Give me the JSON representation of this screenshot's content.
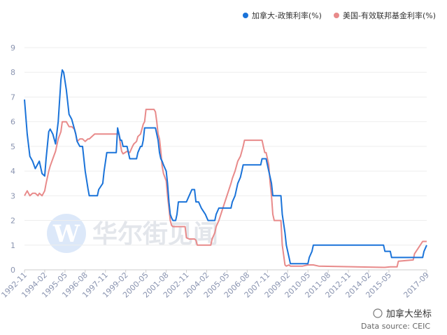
{
  "chart_data": {
    "type": "line",
    "x": [
      "1992-11",
      "1993-01",
      "1993-03",
      "1993-05",
      "1993-07",
      "1993-09",
      "1993-10",
      "1993-12",
      "1994-02",
      "1994-03",
      "1994-05",
      "1994-06",
      "1994-08",
      "1994-10",
      "1994-12",
      "1995-02",
      "1995-03",
      "1995-04",
      "1995-06",
      "1995-08",
      "1995-10",
      "1995-12",
      "1996-01",
      "1996-02",
      "1996-04",
      "1996-06",
      "1996-08",
      "1996-10",
      "1996-11",
      "1997-03",
      "1997-05",
      "1997-06",
      "1997-09",
      "1997-10",
      "1997-12",
      "1998-07",
      "1998-08",
      "1998-09",
      "1998-10",
      "1998-11",
      "1998-12",
      "1999-03",
      "1999-05",
      "1999-07",
      "1999-08",
      "1999-10",
      "1999-11",
      "2000-01",
      "2000-02",
      "2000-03",
      "2000-04",
      "2000-05",
      "2000-11",
      "2000-12",
      "2001-01",
      "2001-02",
      "2001-03",
      "2001-04",
      "2001-05",
      "2001-06",
      "2001-08",
      "2001-09",
      "2001-10",
      "2001-11",
      "2001-12",
      "2002-01",
      "2002-03",
      "2002-04",
      "2002-05",
      "2002-10",
      "2002-11",
      "2003-01",
      "2003-03",
      "2003-05",
      "2003-06",
      "2003-07",
      "2003-08",
      "2003-10",
      "2004-01",
      "2004-03",
      "2004-05",
      "2004-06",
      "2004-08",
      "2004-09",
      "2004-11",
      "2005-02",
      "2005-05",
      "2005-08",
      "2005-09",
      "2005-11",
      "2006-01",
      "2006-03",
      "2006-04",
      "2006-05",
      "2006-06",
      "2007-06",
      "2007-07",
      "2007-08",
      "2007-09",
      "2007-10",
      "2007-11",
      "2007-12",
      "2008-01",
      "2008-02",
      "2008-03",
      "2008-04",
      "2008-09",
      "2008-10",
      "2008-12",
      "2009-01",
      "2009-03",
      "2009-04",
      "2010-01",
      "2010-05",
      "2010-06",
      "2010-08",
      "2010-09",
      "2011-01",
      "2015-01",
      "2015-02",
      "2015-06",
      "2015-07",
      "2015-11",
      "2015-12",
      "2016-11",
      "2016-12",
      "2017-03",
      "2017-06",
      "2017-07",
      "2017-09"
    ],
    "series": [
      {
        "name": "加拿大-政策利率(%)",
        "color": "#1a73d9",
        "values": [
          6.9,
          5.5,
          4.6,
          4.4,
          4.1,
          4.3,
          4.4,
          3.9,
          3.8,
          4.5,
          5.6,
          5.7,
          5.5,
          5.1,
          6.0,
          7.7,
          8.1,
          8.0,
          7.3,
          6.3,
          6.1,
          5.7,
          5.5,
          5.2,
          5.0,
          5.0,
          4.0,
          3.3,
          3.0,
          3.0,
          3.0,
          3.25,
          3.5,
          4.0,
          4.75,
          4.75,
          5.75,
          5.5,
          5.25,
          5.25,
          5.0,
          5.0,
          4.5,
          4.5,
          4.5,
          4.5,
          4.75,
          5.0,
          5.0,
          5.25,
          5.75,
          5.75,
          5.75,
          5.75,
          5.5,
          5.25,
          4.75,
          4.5,
          4.4,
          4.25,
          4.0,
          3.5,
          2.75,
          2.25,
          2.1,
          2.0,
          2.0,
          2.25,
          2.75,
          2.75,
          2.75,
          3.0,
          3.25,
          3.25,
          2.75,
          2.75,
          2.75,
          2.5,
          2.25,
          2.0,
          2.0,
          2.0,
          2.0,
          2.25,
          2.5,
          2.5,
          2.5,
          2.5,
          2.75,
          3.0,
          3.5,
          3.75,
          4.0,
          4.25,
          4.25,
          4.25,
          4.5,
          4.5,
          4.5,
          4.5,
          4.25,
          4.0,
          3.75,
          3.5,
          3.0,
          3.0,
          3.0,
          2.25,
          1.5,
          1.0,
          0.5,
          0.25,
          0.25,
          0.25,
          0.5,
          0.75,
          1.0,
          1.0,
          1.0,
          0.75,
          0.75,
          0.5,
          0.5,
          0.5,
          0.5,
          0.5,
          0.5,
          0.5,
          0.75,
          1.0
        ]
      },
      {
        "name": "美国-有效联邦基金利率(%)",
        "color": "#e88a8a",
        "values": [
          3.0,
          3.2,
          3.0,
          3.1,
          3.1,
          3.0,
          3.1,
          3.0,
          3.2,
          3.5,
          4.0,
          4.2,
          4.5,
          4.8,
          5.3,
          5.6,
          6.0,
          6.0,
          6.0,
          5.8,
          5.8,
          5.7,
          5.5,
          5.2,
          5.3,
          5.3,
          5.2,
          5.3,
          5.3,
          5.5,
          5.5,
          5.5,
          5.5,
          5.5,
          5.5,
          5.5,
          5.5,
          5.5,
          5.1,
          4.8,
          4.7,
          4.8,
          4.75,
          5.0,
          5.1,
          5.2,
          5.4,
          5.5,
          5.7,
          5.9,
          6.0,
          6.5,
          6.5,
          6.4,
          6.0,
          5.5,
          5.3,
          4.8,
          4.2,
          3.9,
          3.6,
          3.0,
          2.5,
          2.0,
          1.8,
          1.75,
          1.75,
          1.75,
          1.75,
          1.75,
          1.3,
          1.25,
          1.25,
          1.25,
          1.2,
          1.0,
          1.0,
          1.0,
          1.0,
          1.0,
          1.0,
          1.25,
          1.5,
          1.75,
          2.0,
          2.5,
          3.0,
          3.5,
          3.7,
          4.0,
          4.4,
          4.6,
          4.8,
          5.0,
          5.25,
          5.25,
          5.25,
          5.0,
          4.75,
          4.75,
          4.5,
          4.25,
          3.5,
          3.0,
          2.25,
          2.0,
          2.0,
          1.0,
          0.2,
          0.15,
          0.2,
          0.15,
          0.15,
          0.2,
          0.2,
          0.2,
          0.2,
          0.15,
          0.1,
          0.1,
          0.12,
          0.12,
          0.12,
          0.35,
          0.4,
          0.65,
          0.9,
          1.15,
          1.15,
          1.15
        ]
      }
    ],
    "xlim": [
      "1992-11",
      "2017-09"
    ],
    "xticks": [
      "1992-11",
      "1994-02",
      "1995-05",
      "1996-08",
      "1997-11",
      "1999-02",
      "2000-05",
      "2001-08",
      "2002-11",
      "2004-02",
      "2005-05",
      "2006-08",
      "2007-11",
      "2009-02",
      "2010-05",
      "2011-08",
      "2012-11",
      "2014-02",
      "2015-05",
      "2017-09"
    ],
    "ylim": [
      0,
      9
    ],
    "yticks": [
      0,
      1,
      2,
      3,
      4,
      5,
      6,
      7,
      8,
      9
    ],
    "grid": true,
    "legend": "top-right",
    "watermark": "华尔街见闻",
    "brand": "加拿大坐标",
    "source": "Data source: CEIC"
  }
}
